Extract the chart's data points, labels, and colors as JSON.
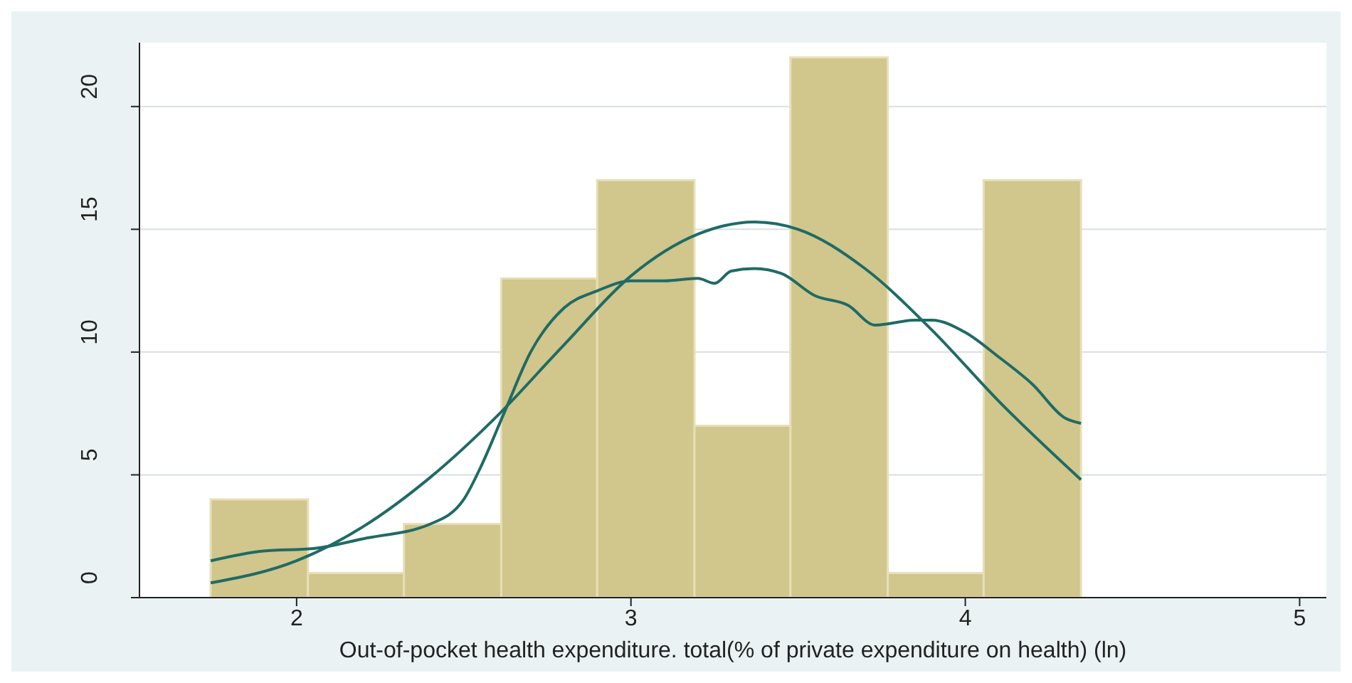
{
  "chart_data": {
    "type": "histogram",
    "xlabel": "Out-of-pocket health expenditure. total(% of private expenditure on health) (ln)",
    "bins": [
      1.743,
      2.034,
      2.321,
      2.612,
      2.899,
      3.19,
      3.477,
      3.768,
      4.055,
      4.346
    ],
    "values": [
      4,
      1,
      3,
      13,
      17,
      7,
      22,
      1,
      17
    ],
    "color": "#d1c68b",
    "series": [
      {
        "type": "line",
        "color": "#1f6b66",
        "x": [
          1.743,
          1.9,
          2.05,
          2.2,
          2.4,
          2.5,
          2.55,
          2.62,
          2.7,
          2.8,
          2.9,
          3.0,
          3.1,
          3.2,
          3.25,
          3.3,
          3.37,
          3.45,
          3.55,
          3.65,
          3.73,
          3.85,
          3.9,
          4.0,
          4.1,
          4.2,
          4.3,
          4.346
        ],
        "values": [
          1.5,
          1.9,
          2.0,
          2.4,
          3.0,
          4.0,
          5.3,
          7.5,
          10.0,
          11.8,
          12.5,
          12.9,
          12.9,
          13.0,
          12.8,
          13.3,
          13.4,
          13.2,
          12.3,
          11.9,
          11.1,
          11.3,
          11.3,
          10.8,
          9.8,
          8.7,
          7.3,
          7.1
        ]
      },
      {
        "type": "line",
        "color": "#1f6b66",
        "x": [
          1.743,
          2.0,
          2.2,
          2.4,
          2.6,
          2.8,
          3.0,
          3.2,
          3.37,
          3.5,
          3.7,
          3.9,
          4.1,
          4.346
        ],
        "values": [
          0.6,
          1.5,
          2.9,
          4.9,
          7.4,
          10.3,
          13.1,
          14.8,
          15.3,
          15.0,
          13.4,
          10.9,
          8.0,
          4.8
        ]
      }
    ],
    "xlim": [
      1.53,
      5.08
    ],
    "xticks": [
      2,
      3,
      4,
      5
    ],
    "ylim": [
      0,
      22.6
    ],
    "yticks": [
      0,
      5,
      10,
      15,
      20
    ],
    "grid": "y"
  }
}
